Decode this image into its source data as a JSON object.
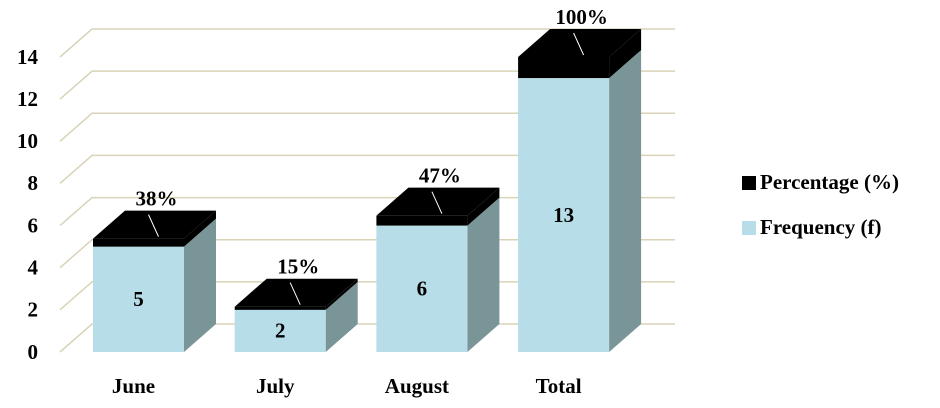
{
  "chart_data": {
    "type": "bar3d_stacked",
    "categories": [
      "June",
      "July",
      "August",
      "Total"
    ],
    "series": [
      {
        "name": "Frequency (f)",
        "color": "#b7dde8",
        "values": [
          5,
          2,
          6,
          13
        ],
        "value_labels": [
          "5",
          "2",
          "6",
          "13"
        ]
      },
      {
        "name": "Percentage (%)",
        "color": "#000000",
        "values": [
          0.38,
          0.15,
          0.47,
          1
        ],
        "value_labels": [
          "38%",
          "15%",
          "47%",
          "100%"
        ]
      }
    ],
    "ylim": [
      0,
      14
    ],
    "yticks": [
      0,
      2,
      4,
      6,
      8,
      10,
      12,
      14
    ],
    "grid": true,
    "legend": "right"
  }
}
